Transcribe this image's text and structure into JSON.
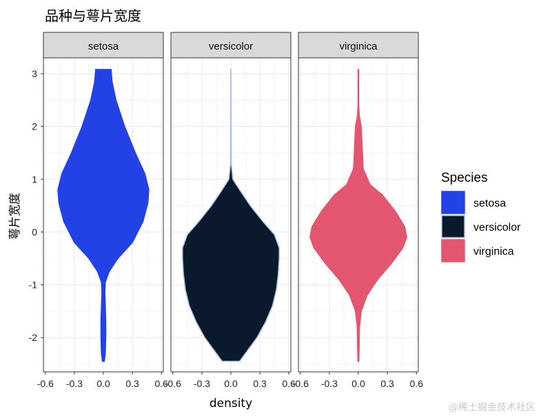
{
  "chart_data": {
    "type": "violin",
    "title": "品种与萼片宽度",
    "xlabel": "density",
    "ylabel": "萼片宽度",
    "x_ticks": [
      "-0.6",
      "-0.3",
      "0.0",
      "0.3",
      "0.6"
    ],
    "xlim": [
      -0.62,
      0.62
    ],
    "y_ticks": [
      -2,
      -1,
      0,
      1,
      2,
      3
    ],
    "ylim": [
      -2.65,
      3.3
    ],
    "legend_title": "Species",
    "legend_position": "right",
    "grid": true,
    "panels": [
      {
        "name": "setosa",
        "fill": "#2242e6",
        "outline": "#2242e6",
        "profile": [
          [
            -2.45,
            0.01
          ],
          [
            -2.3,
            0.02
          ],
          [
            -2.0,
            0.025
          ],
          [
            -1.7,
            0.025
          ],
          [
            -1.4,
            0.02
          ],
          [
            -1.15,
            0.015
          ],
          [
            -0.95,
            0.02
          ],
          [
            -0.75,
            0.06
          ],
          [
            -0.5,
            0.15
          ],
          [
            -0.2,
            0.3
          ],
          [
            0.2,
            0.41
          ],
          [
            0.55,
            0.46
          ],
          [
            0.8,
            0.47
          ],
          [
            1.1,
            0.43
          ],
          [
            1.5,
            0.33
          ],
          [
            2.0,
            0.22
          ],
          [
            2.5,
            0.13
          ],
          [
            2.85,
            0.09
          ],
          [
            3.08,
            0.08
          ]
        ]
      },
      {
        "name": "versicolor",
        "fill": "#0a1a2c",
        "outline": "#a9bde6",
        "profile": [
          [
            -2.45,
            0.09
          ],
          [
            -2.3,
            0.15
          ],
          [
            -2.0,
            0.27
          ],
          [
            -1.7,
            0.36
          ],
          [
            -1.4,
            0.43
          ],
          [
            -1.1,
            0.47
          ],
          [
            -0.8,
            0.49
          ],
          [
            -0.5,
            0.5
          ],
          [
            -0.3,
            0.5
          ],
          [
            -0.05,
            0.45
          ],
          [
            0.2,
            0.33
          ],
          [
            0.5,
            0.2
          ],
          [
            0.8,
            0.09
          ],
          [
            1.0,
            0.02
          ],
          [
            1.3,
            0.004
          ],
          [
            2.0,
            0.002
          ],
          [
            3.08,
            0.001
          ]
        ]
      },
      {
        "name": "virginica",
        "fill": "#e3566f",
        "outline": "#e3566f",
        "profile": [
          [
            -2.45,
            0.005
          ],
          [
            -2.2,
            0.008
          ],
          [
            -1.8,
            0.012
          ],
          [
            -1.5,
            0.03
          ],
          [
            -1.2,
            0.09
          ],
          [
            -0.9,
            0.2
          ],
          [
            -0.6,
            0.34
          ],
          [
            -0.3,
            0.46
          ],
          [
            -0.1,
            0.5
          ],
          [
            0.1,
            0.48
          ],
          [
            0.4,
            0.38
          ],
          [
            0.7,
            0.25
          ],
          [
            0.9,
            0.12
          ],
          [
            1.2,
            0.05
          ],
          [
            1.6,
            0.04
          ],
          [
            2.0,
            0.03
          ],
          [
            2.2,
            0.01
          ],
          [
            2.4,
            0.004
          ],
          [
            3.08,
            0.003
          ]
        ]
      }
    ]
  },
  "watermark": "@稀土掘金技术社区"
}
